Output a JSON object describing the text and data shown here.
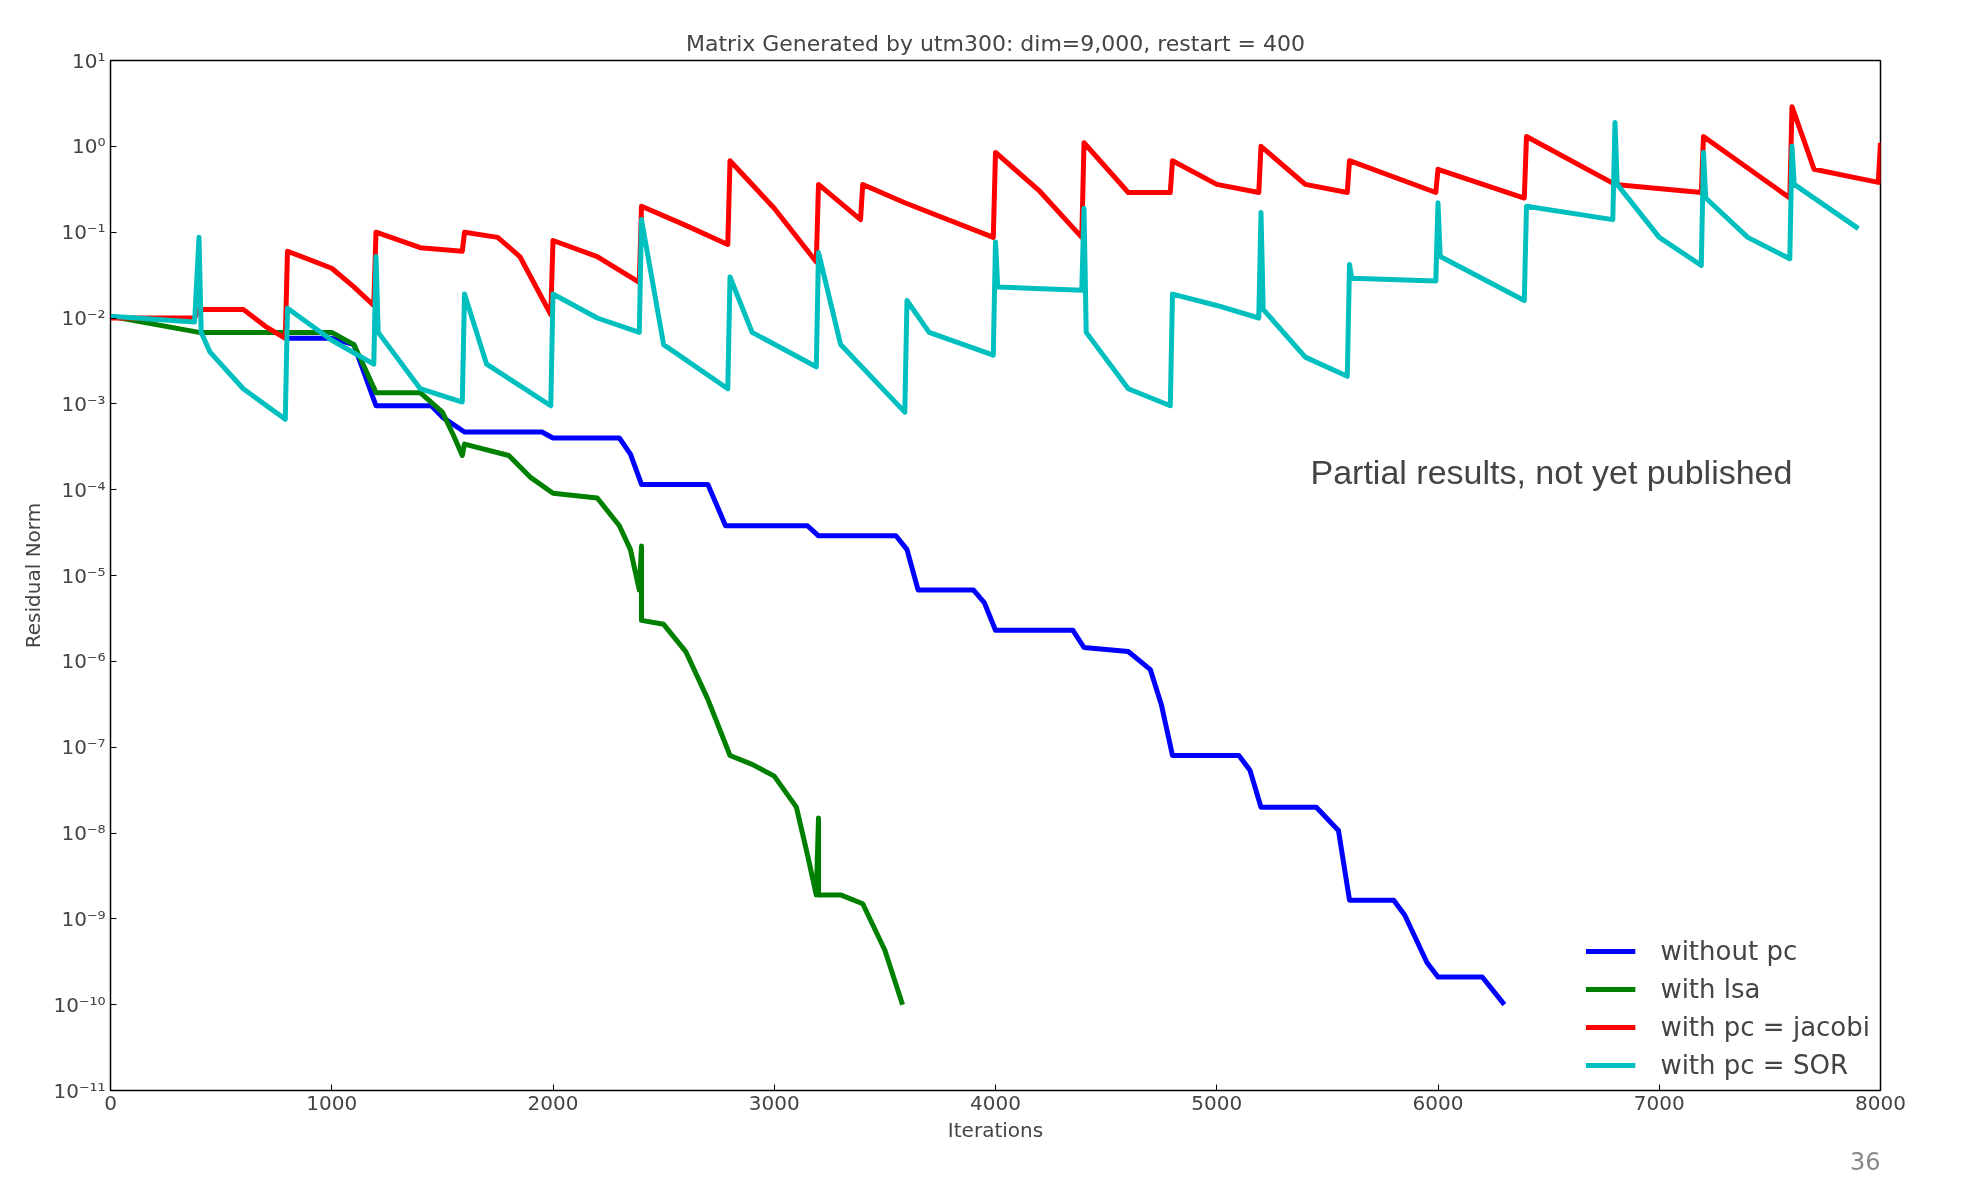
{
  "chart_data": {
    "type": "line",
    "title": "Matrix Generated by utm300: dim=9,000, restart = 400",
    "xlabel": "Iterations",
    "ylabel": "Residual Norm",
    "log": "y",
    "xlim": [
      0,
      8000
    ],
    "xticks": [
      0,
      1000,
      2000,
      3000,
      4000,
      5000,
      6000,
      7000,
      8000
    ],
    "ylim": [
      1e-11,
      10
    ],
    "yticks": [
      {
        "value": 1e-11,
        "label": "10⁻¹¹"
      },
      {
        "value": 1e-10,
        "label": "10⁻¹⁰"
      },
      {
        "value": 1e-09,
        "label": "10⁻⁹"
      },
      {
        "value": 1e-08,
        "label": "10⁻⁸"
      },
      {
        "value": 1e-07,
        "label": "10⁻⁷"
      },
      {
        "value": 1e-06,
        "label": "10⁻⁶"
      },
      {
        "value": 1e-05,
        "label": "10⁻⁵"
      },
      {
        "value": 0.0001,
        "label": "10⁻⁴"
      },
      {
        "value": 0.001,
        "label": "10⁻³"
      },
      {
        "value": 0.01,
        "label": "10⁻²"
      },
      {
        "value": 0.1,
        "label": "10⁻¹"
      },
      {
        "value": 1,
        "label": "10⁰"
      },
      {
        "value": 10,
        "label": "10¹"
      }
    ],
    "grid": false,
    "legend": "bottom right",
    "line_style": "solid",
    "marker": "none",
    "annotations": [
      "Partial results, not yet published",
      "36"
    ],
    "series": [
      {
        "name": "without pc",
        "color": "#0000ff",
        "x": [
          800,
          1000,
          1100,
          1200,
          1450,
          1500,
          1600,
          1950,
          2000,
          2300,
          2350,
          2400,
          2700,
          2780,
          3150,
          3200,
          3550,
          3600,
          3650,
          3900,
          3950,
          4000,
          4350,
          4400,
          4600,
          4700,
          4750,
          4800,
          5100,
          5150,
          5200,
          5450,
          5550,
          5600,
          5800,
          5850,
          5950,
          6000,
          6200,
          6300
        ],
        "values": [
          0.0058,
          0.0058,
          0.0049,
          0.00095,
          0.00095,
          0.0007,
          0.00047,
          0.00047,
          0.0004,
          0.0004,
          0.00026,
          0.000115,
          0.000115,
          3.8e-05,
          3.8e-05,
          2.9e-05,
          2.9e-05,
          2e-05,
          6.8e-06,
          6.8e-06,
          4.8e-06,
          2.3e-06,
          2.3e-06,
          1.45e-06,
          1.3e-06,
          8e-07,
          3.1e-07,
          8e-08,
          8e-08,
          5.4e-08,
          2e-08,
          2e-08,
          1.07e-08,
          1.65e-09,
          1.65e-09,
          1.1e-09,
          3.1e-10,
          2.1e-10,
          2.1e-10,
          1e-10
        ]
      },
      {
        "name": "with lsa",
        "color": "#008000",
        "x": [
          0,
          400,
          1000,
          1100,
          1150,
          1200,
          1400,
          1500,
          1550,
          1590,
          1600,
          1800,
          1900,
          2000,
          2200,
          2300,
          2350,
          2390,
          2400,
          2400,
          2500,
          2600,
          2700,
          2800,
          2900,
          3000,
          3100,
          3150,
          3190,
          3200,
          3200,
          3300,
          3400,
          3500,
          3580
        ],
        "values": [
          0.0105,
          0.0068,
          0.0068,
          0.0049,
          0.0026,
          0.00135,
          0.00135,
          0.0008,
          0.00043,
          0.00025,
          0.00034,
          0.00025,
          0.000138,
          9.1e-05,
          8e-05,
          3.8e-05,
          2e-05,
          6.8e-06,
          2.2e-05,
          3e-06,
          2.7e-06,
          1.3e-06,
          3.6e-07,
          8e-08,
          6.3e-08,
          4.6e-08,
          2e-08,
          5.6e-09,
          1.9e-09,
          1.5e-08,
          1.9e-09,
          1.9e-09,
          1.5e-09,
          4.3e-10,
          1e-10
        ]
      },
      {
        "name": "with pc = jacobi",
        "color": "#ff0000",
        "x": [
          0,
          380,
          400,
          600,
          700,
          790,
          800,
          1000,
          1100,
          1190,
          1200,
          1400,
          1590,
          1600,
          1750,
          1850,
          1990,
          2000,
          2200,
          2390,
          2400,
          2600,
          2790,
          2800,
          3000,
          3190,
          3200,
          3390,
          3400,
          3590,
          3990,
          4000,
          4200,
          4390,
          4400,
          4600,
          4790,
          4800,
          5000,
          5190,
          5200,
          5400,
          5590,
          5600,
          5990,
          6000,
          6390,
          6400,
          6800,
          7190,
          7200,
          7590,
          7600,
          7700,
          7990,
          8000
        ],
        "values": [
          0.01,
          0.01,
          0.0126,
          0.0126,
          0.008,
          0.0058,
          0.06,
          0.038,
          0.023,
          0.014,
          0.1,
          0.066,
          0.06,
          0.1,
          0.087,
          0.052,
          0.011,
          0.08,
          0.052,
          0.026,
          0.2,
          0.12,
          0.072,
          0.68,
          0.19,
          0.045,
          0.36,
          0.14,
          0.36,
          0.22,
          0.087,
          0.85,
          0.3,
          0.087,
          1.1,
          0.29,
          0.29,
          0.68,
          0.36,
          0.29,
          1.0,
          0.36,
          0.29,
          0.68,
          0.29,
          0.54,
          0.25,
          1.3,
          0.36,
          0.29,
          1.3,
          0.25,
          2.9,
          0.54,
          0.38,
          1.1
        ]
      },
      {
        "name": "with pc = SOR",
        "color": "#00bfbf",
        "x": [
          0,
          380,
          400,
          410,
          450,
          600,
          790,
          800,
          1000,
          1190,
          1200,
          1210,
          1400,
          1590,
          1600,
          1700,
          1990,
          2000,
          2200,
          2390,
          2400,
          2500,
          2790,
          2800,
          2900,
          3190,
          3200,
          3300,
          3590,
          3600,
          3700,
          3990,
          4000,
          4010,
          4390,
          4400,
          4410,
          4600,
          4790,
          4800,
          5000,
          5190,
          5200,
          5210,
          5400,
          5590,
          5600,
          5610,
          5990,
          6000,
          6010,
          6390,
          6400,
          6790,
          6800,
          6810,
          7000,
          7190,
          7200,
          7210,
          7400,
          7590,
          7600,
          7610,
          7900
        ],
        "values": [
          0.0105,
          0.009,
          0.087,
          0.0068,
          0.004,
          0.0015,
          0.00066,
          0.013,
          0.0055,
          0.0029,
          0.052,
          0.0068,
          0.0015,
          0.00105,
          0.019,
          0.0029,
          0.00095,
          0.019,
          0.01,
          0.0068,
          0.14,
          0.0049,
          0.0015,
          0.03,
          0.0068,
          0.0027,
          0.058,
          0.0049,
          0.0008,
          0.016,
          0.0068,
          0.0037,
          0.077,
          0.023,
          0.021,
          0.19,
          0.0068,
          0.0015,
          0.00095,
          0.019,
          0.014,
          0.01,
          0.17,
          0.0126,
          0.0035,
          0.0021,
          0.042,
          0.029,
          0.027,
          0.22,
          0.052,
          0.016,
          0.2,
          0.14,
          1.9,
          0.36,
          0.087,
          0.041,
          0.85,
          0.25,
          0.087,
          0.049,
          1.0,
          0.36,
          0.11
        ]
      }
    ]
  }
}
